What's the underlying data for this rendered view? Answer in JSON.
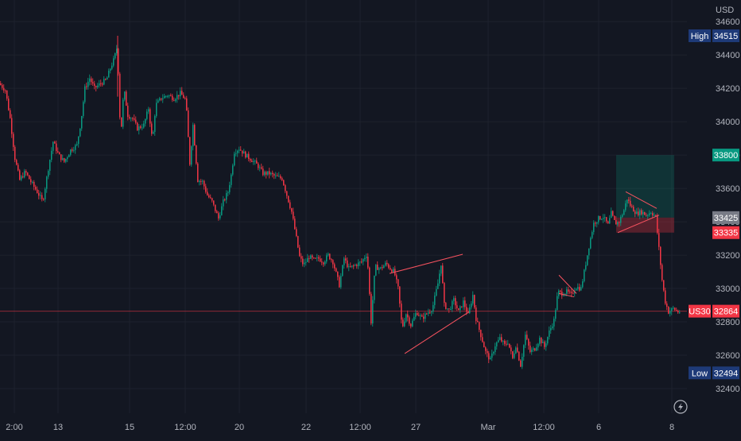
{
  "chart_data": {
    "type": "candlestick",
    "symbol": "US30",
    "currency": "USD",
    "y_ticks": [
      32400,
      32600,
      32800,
      33000,
      33200,
      33400,
      33600,
      33800,
      34000,
      34200,
      34400,
      34600
    ],
    "ylim": [
      32300,
      34720
    ],
    "x_ticks": [
      "2:00",
      "13",
      "15",
      "12:00",
      "20",
      "22",
      "12:00",
      "27",
      "Mar",
      "12:00",
      "6",
      "8"
    ],
    "price_path": [
      [
        0,
        34230
      ],
      [
        8,
        34190
      ],
      [
        14,
        34020
      ],
      [
        20,
        33780
      ],
      [
        26,
        33650
      ],
      [
        33,
        33700
      ],
      [
        40,
        33640
      ],
      [
        48,
        33580
      ],
      [
        55,
        33520
      ],
      [
        62,
        33720
      ],
      [
        68,
        33880
      ],
      [
        75,
        33800
      ],
      [
        82,
        33760
      ],
      [
        90,
        33830
      ],
      [
        98,
        33860
      ],
      [
        103,
        34000
      ],
      [
        108,
        34200
      ],
      [
        114,
        34260
      ],
      [
        120,
        34200
      ],
      [
        128,
        34230
      ],
      [
        135,
        34250
      ],
      [
        140,
        34320
      ],
      [
        145,
        34380
      ],
      [
        148,
        34440
      ],
      [
        150,
        34300
      ],
      [
        153,
        33900
      ],
      [
        157,
        34200
      ],
      [
        162,
        34040
      ],
      [
        168,
        34020
      ],
      [
        174,
        33960
      ],
      [
        182,
        33980
      ],
      [
        188,
        34080
      ],
      [
        193,
        33880
      ],
      [
        197,
        34100
      ],
      [
        204,
        34140
      ],
      [
        212,
        34160
      ],
      [
        220,
        34140
      ],
      [
        228,
        34170
      ],
      [
        235,
        34130
      ],
      [
        240,
        33750
      ],
      [
        244,
        33980
      ],
      [
        250,
        33650
      ],
      [
        256,
        33640
      ],
      [
        262,
        33560
      ],
      [
        268,
        33520
      ],
      [
        276,
        33420
      ],
      [
        282,
        33520
      ],
      [
        288,
        33580
      ],
      [
        292,
        33680
      ],
      [
        296,
        33820
      ],
      [
        302,
        33840
      ],
      [
        310,
        33800
      ],
      [
        318,
        33770
      ],
      [
        325,
        33740
      ],
      [
        332,
        33690
      ],
      [
        340,
        33690
      ],
      [
        348,
        33670
      ],
      [
        356,
        33660
      ],
      [
        362,
        33560
      ],
      [
        368,
        33460
      ],
      [
        373,
        33330
      ],
      [
        378,
        33190
      ],
      [
        383,
        33140
      ],
      [
        390,
        33190
      ],
      [
        396,
        33170
      ],
      [
        402,
        33180
      ],
      [
        408,
        33160
      ],
      [
        414,
        33200
      ],
      [
        420,
        33160
      ],
      [
        428,
        33020
      ],
      [
        434,
        33180
      ],
      [
        440,
        33120
      ],
      [
        448,
        33140
      ],
      [
        456,
        33160
      ],
      [
        463,
        33210
      ],
      [
        468,
        32800
      ],
      [
        473,
        33130
      ],
      [
        480,
        33120
      ],
      [
        487,
        33150
      ],
      [
        492,
        33120
      ],
      [
        497,
        33100
      ],
      [
        502,
        33000
      ],
      [
        507,
        32760
      ],
      [
        512,
        32850
      ],
      [
        518,
        32780
      ],
      [
        525,
        32860
      ],
      [
        532,
        32820
      ],
      [
        538,
        32850
      ],
      [
        545,
        32880
      ],
      [
        552,
        33030
      ],
      [
        556,
        33150
      ],
      [
        560,
        32900
      ],
      [
        566,
        32870
      ],
      [
        572,
        32930
      ],
      [
        578,
        32860
      ],
      [
        584,
        32920
      ],
      [
        590,
        32840
      ],
      [
        596,
        32960
      ],
      [
        600,
        32820
      ],
      [
        606,
        32720
      ],
      [
        612,
        32620
      ],
      [
        618,
        32570
      ],
      [
        624,
        32660
      ],
      [
        630,
        32700
      ],
      [
        636,
        32660
      ],
      [
        640,
        32680
      ],
      [
        646,
        32580
      ],
      [
        650,
        32660
      ],
      [
        656,
        32540
      ],
      [
        662,
        32720
      ],
      [
        668,
        32620
      ],
      [
        674,
        32640
      ],
      [
        680,
        32700
      ],
      [
        686,
        32650
      ],
      [
        692,
        32740
      ],
      [
        698,
        32810
      ],
      [
        703,
        32980
      ],
      [
        708,
        32970
      ],
      [
        714,
        32980
      ],
      [
        720,
        32960
      ],
      [
        725,
        33010
      ],
      [
        732,
        33000
      ],
      [
        738,
        33150
      ],
      [
        743,
        33280
      ],
      [
        748,
        33390
      ],
      [
        754,
        33420
      ],
      [
        760,
        33430
      ],
      [
        766,
        33380
      ],
      [
        770,
        33450
      ],
      [
        775,
        33390
      ],
      [
        780,
        33400
      ],
      [
        786,
        33470
      ],
      [
        790,
        33540
      ],
      [
        795,
        33490
      ],
      [
        802,
        33450
      ],
      [
        808,
        33460
      ],
      [
        814,
        33440
      ],
      [
        820,
        33460
      ],
      [
        826,
        33430
      ],
      [
        830,
        33240
      ],
      [
        834,
        33050
      ],
      [
        838,
        32920
      ],
      [
        842,
        32860
      ],
      [
        848,
        32880
      ],
      [
        854,
        32860
      ]
    ],
    "horizontal_line": 32864,
    "high": 34515,
    "low": 32494,
    "position": {
      "take_profit": 33800,
      "entry": 33425,
      "stop_loss": 33335
    },
    "trendlines": [
      {
        "from": [
          490,
          33090
        ],
        "to": [
          582,
          33205
        ]
      },
      {
        "from": [
          509,
          32610
        ],
        "to": [
          590,
          32860
        ]
      },
      {
        "from": [
          703,
          33080
        ],
        "to": [
          725,
          32970
        ]
      },
      {
        "from": [
          703,
          32970
        ],
        "to": [
          722,
          32950
        ]
      },
      {
        "from": [
          787,
          33580
        ],
        "to": [
          826,
          33480
        ]
      },
      {
        "from": [
          777,
          33335
        ],
        "to": [
          829,
          33440
        ]
      }
    ],
    "price_labels": [
      {
        "text": "High",
        "value": "34515",
        "price": 34515,
        "bg": "#1e3a78"
      },
      {
        "text": "",
        "value": "33800",
        "price": 33800,
        "bg": "#089981"
      },
      {
        "text": "",
        "value": "33425",
        "price": 33425,
        "bg": "#787b86"
      },
      {
        "text": "",
        "value": "33335",
        "price": 33335,
        "bg": "#f23645"
      },
      {
        "text": "US30",
        "value": "32864",
        "price": 32864,
        "bg": "#f23645"
      },
      {
        "text": "Low",
        "value": "32494",
        "price": 32494,
        "bg": "#1e3a78"
      }
    ]
  },
  "colors": {
    "background": "#131722",
    "grid": "#1e222d",
    "up": "#089981",
    "down": "#f23645",
    "line": "#f23645",
    "trendline": "#f7525f",
    "text": "#b2b5be",
    "label_text": "#ffffff",
    "tp_zone": "rgba(8,153,129,0.22)",
    "sl_zone": "rgba(242,54,69,0.30)"
  },
  "icons": {
    "bottom_right": "lightning-icon"
  }
}
